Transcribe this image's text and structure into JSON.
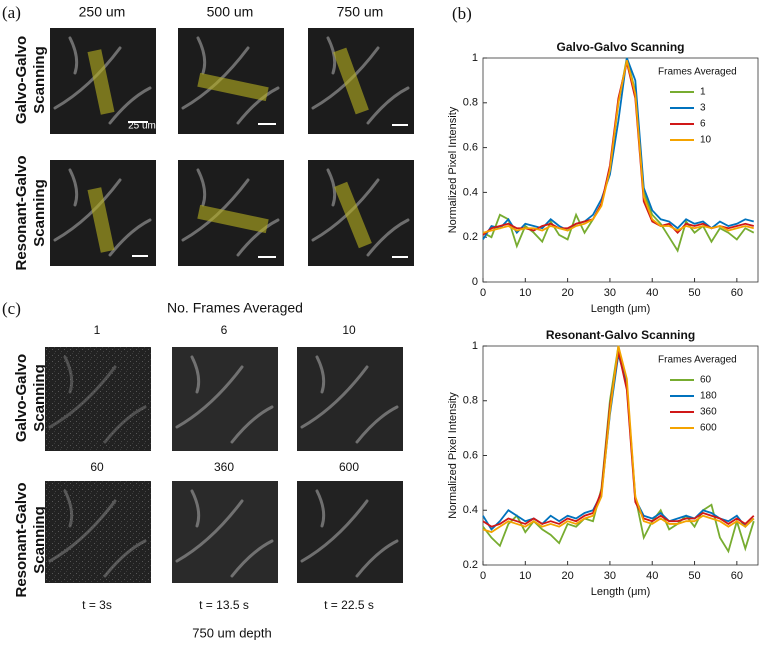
{
  "panel_a": {
    "label": "(a)",
    "columns": [
      "250 um",
      "500 um",
      "750 um"
    ],
    "rows": [
      [
        "Galvo-Galvo",
        "Scanning"
      ],
      [
        "Resonant-Galvo",
        "Scanning"
      ]
    ],
    "scale_bar_label": "25 um"
  },
  "panel_b": {
    "label": "(b)"
  },
  "panel_c": {
    "label": "(c)",
    "title": "No. Frames Averaged",
    "frames": [
      [
        "1",
        "6",
        "10"
      ],
      [
        "60",
        "360",
        "600"
      ]
    ],
    "rows": [
      [
        "Galvo-Galvo",
        "Scanning"
      ],
      [
        "Resonant-Galvo",
        "Scanning"
      ]
    ],
    "times": [
      "t = 3s",
      "t = 13.5 s",
      "t = 22.5 s"
    ],
    "footer": "750 um depth"
  },
  "chart_data": [
    {
      "type": "line",
      "title": "Galvo-Galvo Scanning",
      "x_label": "Length (μm)",
      "y_label": "Normalized Pixel Intensity",
      "legend_title": "Frames Averaged",
      "legend": "upper right",
      "x": [
        0,
        2,
        4,
        6,
        8,
        10,
        12,
        14,
        16,
        18,
        20,
        22,
        24,
        26,
        28,
        30,
        32,
        34,
        36,
        38,
        40,
        42,
        44,
        46,
        48,
        50,
        52,
        54,
        56,
        58,
        60,
        62,
        64
      ],
      "series": [
        {
          "name": "1",
          "color": "#77AC30",
          "values": [
            0.22,
            0.2,
            0.3,
            0.28,
            0.16,
            0.25,
            0.22,
            0.18,
            0.27,
            0.21,
            0.19,
            0.3,
            0.22,
            0.28,
            0.35,
            0.5,
            0.8,
            1.0,
            0.85,
            0.4,
            0.3,
            0.26,
            0.2,
            0.14,
            0.27,
            0.22,
            0.25,
            0.18,
            0.24,
            0.22,
            0.19,
            0.24,
            0.22
          ]
        },
        {
          "name": "3",
          "color": "#0072BD",
          "values": [
            0.19,
            0.25,
            0.24,
            0.28,
            0.22,
            0.26,
            0.25,
            0.24,
            0.28,
            0.25,
            0.23,
            0.26,
            0.27,
            0.3,
            0.37,
            0.48,
            0.72,
            1.0,
            0.9,
            0.42,
            0.32,
            0.28,
            0.27,
            0.24,
            0.28,
            0.26,
            0.27,
            0.24,
            0.27,
            0.25,
            0.26,
            0.28,
            0.27
          ]
        },
        {
          "name": "6",
          "color": "#D01818",
          "values": [
            0.21,
            0.24,
            0.25,
            0.26,
            0.24,
            0.24,
            0.23,
            0.25,
            0.26,
            0.24,
            0.24,
            0.26,
            0.27,
            0.28,
            0.35,
            0.52,
            0.82,
            0.98,
            0.82,
            0.36,
            0.27,
            0.25,
            0.26,
            0.22,
            0.26,
            0.25,
            0.26,
            0.24,
            0.25,
            0.24,
            0.25,
            0.26,
            0.25
          ]
        },
        {
          "name": "10",
          "color": "#F4A300",
          "values": [
            0.22,
            0.23,
            0.24,
            0.25,
            0.23,
            0.24,
            0.24,
            0.23,
            0.25,
            0.24,
            0.23,
            0.25,
            0.26,
            0.28,
            0.34,
            0.5,
            0.8,
            0.99,
            0.84,
            0.38,
            0.28,
            0.25,
            0.25,
            0.23,
            0.25,
            0.24,
            0.25,
            0.24,
            0.25,
            0.23,
            0.24,
            0.25,
            0.24
          ]
        }
      ],
      "xlim": [
        0,
        65
      ],
      "xticks": [
        0,
        10,
        20,
        30,
        40,
        50,
        60
      ],
      "ylim": [
        0,
        1
      ],
      "yticks": [
        0,
        0.2,
        0.4,
        0.6,
        0.8,
        1
      ]
    },
    {
      "type": "line",
      "title": "Resonant-Galvo Scanning",
      "x_label": "Length (μm)",
      "y_label": "Normalized Pixel Intensity",
      "legend_title": "Frames Averaged",
      "legend": "upper right",
      "x": [
        0,
        2,
        4,
        6,
        8,
        10,
        12,
        14,
        16,
        18,
        20,
        22,
        24,
        26,
        28,
        30,
        32,
        34,
        36,
        38,
        40,
        42,
        44,
        46,
        48,
        50,
        52,
        54,
        56,
        58,
        60,
        62,
        64
      ],
      "series": [
        {
          "name": "60",
          "color": "#77AC30",
          "values": [
            0.34,
            0.3,
            0.27,
            0.35,
            0.38,
            0.32,
            0.36,
            0.33,
            0.31,
            0.28,
            0.35,
            0.34,
            0.37,
            0.36,
            0.48,
            0.8,
            1.0,
            0.85,
            0.45,
            0.3,
            0.36,
            0.4,
            0.33,
            0.35,
            0.38,
            0.34,
            0.4,
            0.42,
            0.3,
            0.25,
            0.36,
            0.26,
            0.36
          ]
        },
        {
          "name": "180",
          "color": "#0072BD",
          "values": [
            0.38,
            0.33,
            0.36,
            0.4,
            0.38,
            0.36,
            0.37,
            0.35,
            0.38,
            0.36,
            0.38,
            0.37,
            0.39,
            0.4,
            0.46,
            0.75,
            0.97,
            0.86,
            0.44,
            0.38,
            0.37,
            0.39,
            0.36,
            0.37,
            0.38,
            0.37,
            0.4,
            0.39,
            0.37,
            0.36,
            0.38,
            0.34,
            0.37
          ]
        },
        {
          "name": "360",
          "color": "#D01818",
          "values": [
            0.36,
            0.34,
            0.35,
            0.37,
            0.36,
            0.35,
            0.37,
            0.35,
            0.36,
            0.35,
            0.37,
            0.36,
            0.38,
            0.39,
            0.47,
            0.78,
            0.98,
            0.84,
            0.43,
            0.37,
            0.36,
            0.38,
            0.36,
            0.36,
            0.37,
            0.37,
            0.39,
            0.38,
            0.37,
            0.35,
            0.37,
            0.35,
            0.38
          ]
        },
        {
          "name": "600",
          "color": "#F4A300",
          "values": [
            0.33,
            0.32,
            0.34,
            0.36,
            0.35,
            0.34,
            0.36,
            0.34,
            0.35,
            0.34,
            0.36,
            0.35,
            0.37,
            0.38,
            0.45,
            0.76,
            1.0,
            0.88,
            0.45,
            0.36,
            0.35,
            0.37,
            0.35,
            0.35,
            0.36,
            0.36,
            0.38,
            0.37,
            0.36,
            0.34,
            0.36,
            0.34,
            0.37
          ]
        }
      ],
      "xlim": [
        0,
        65
      ],
      "xticks": [
        0,
        10,
        20,
        30,
        40,
        50,
        60
      ],
      "ylim": [
        0.2,
        1
      ],
      "yticks": [
        0.2,
        0.4,
        0.6,
        0.8,
        1
      ]
    }
  ]
}
